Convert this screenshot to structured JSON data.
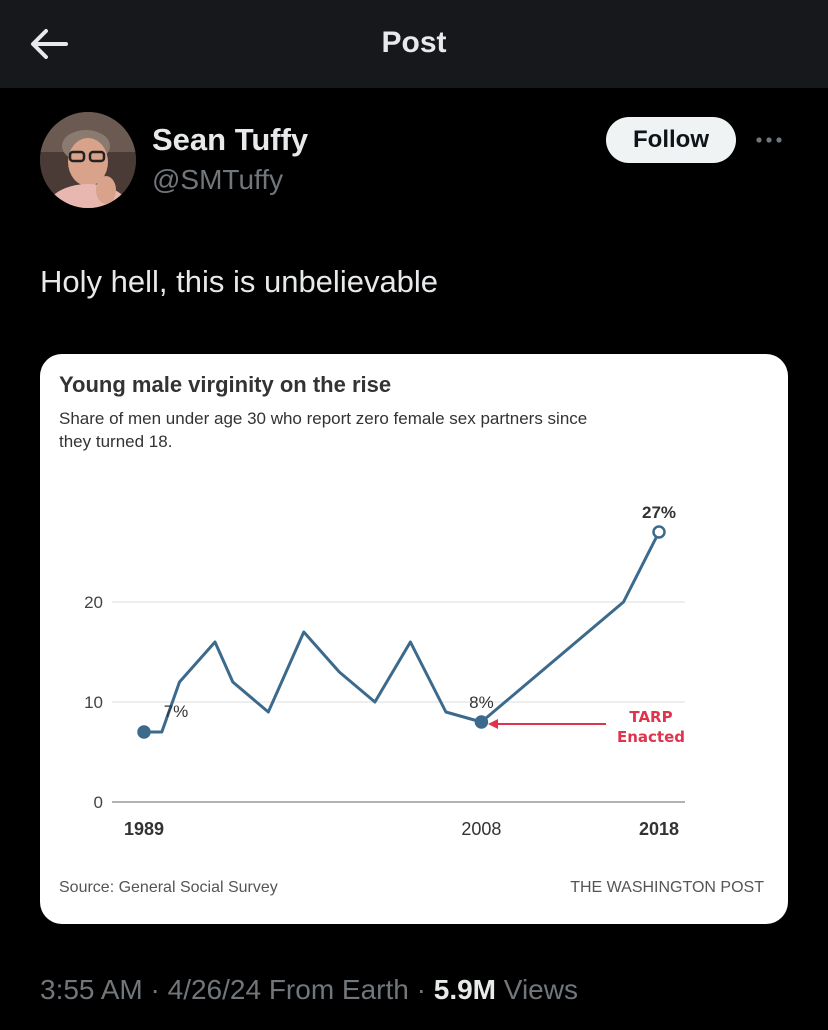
{
  "header": {
    "title": "Post",
    "back_icon": "arrow-left-icon"
  },
  "author": {
    "name": "Sean Tuffy",
    "handle": "@SMTuffy",
    "follow_label": "Follow",
    "more_icon": "more-horizontal-icon"
  },
  "tweet": {
    "text": "Holy hell, this is unbelievable"
  },
  "meta": {
    "time": "3:55 AM",
    "date": "4/26/24",
    "source": "From Earth",
    "views_count": "5.9M",
    "views_label": "Views"
  },
  "chart_data": {
    "type": "line",
    "title": "Young male virginity on the rise",
    "subtitle_line1": "Share of men under age 30 who report zero female sex partners since",
    "subtitle_line2": "they turned 18.",
    "x_tick_labels": [
      "1989",
      "2008",
      "2018"
    ],
    "y_tick_labels": [
      "0",
      "10",
      "20"
    ],
    "ylim": [
      0,
      30
    ],
    "xlim": [
      1989,
      2018
    ],
    "series": [
      {
        "values": [
          [
            1989,
            7
          ],
          [
            1990,
            7
          ],
          [
            1991,
            12
          ],
          [
            1993,
            16
          ],
          [
            1994,
            12
          ],
          [
            1996,
            9
          ],
          [
            1998,
            17
          ],
          [
            2000,
            13
          ],
          [
            2002,
            10
          ],
          [
            2004,
            16
          ],
          [
            2006,
            9
          ],
          [
            2008,
            8
          ],
          [
            2016,
            20
          ],
          [
            2018,
            27
          ]
        ]
      }
    ],
    "data_labels": [
      {
        "x": 1989,
        "y": 7,
        "text": "7%"
      },
      {
        "x": 2008,
        "y": 8,
        "text": "8%"
      },
      {
        "x": 2018,
        "y": 27,
        "text": "27%"
      }
    ],
    "annotation": {
      "line1": "TARP",
      "line2": "Enacted",
      "color": "#e0334c"
    },
    "source": "Source: General Social Survey",
    "credit": "THE WASHINGTON POST",
    "line_color": "#3c6a8c",
    "grid": true
  }
}
